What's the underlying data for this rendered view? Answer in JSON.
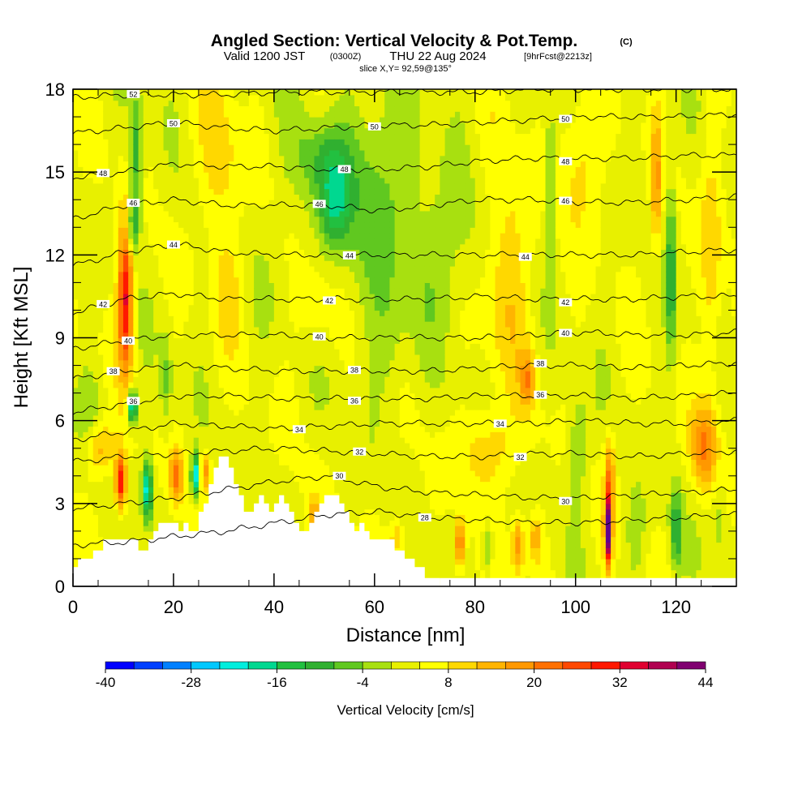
{
  "chart_data": {
    "type": "heatmap",
    "title": "Angled Section: Vertical Velocity & Pot.Temp.",
    "title_suffix": "(C)",
    "subtitle_valid": "Valid 1200 JST",
    "subtitle_utc": "(0300Z)",
    "subtitle_date": "THU 22 Aug 2024",
    "subtitle_fcst": "[9hrFcst@2213z]",
    "slice_label": "slice X,Y= 92,59@135°",
    "xlabel": "Distance [nm]",
    "ylabel": "Height [Kft MSL]",
    "xlim": [
      0,
      132
    ],
    "ylim": [
      0,
      18
    ],
    "x_ticks": [
      "0",
      "20",
      "40",
      "60",
      "80",
      "100",
      "120"
    ],
    "x_tick_values": [
      0,
      20,
      40,
      60,
      80,
      100,
      120
    ],
    "y_ticks": [
      "0",
      "3",
      "6",
      "9",
      "12",
      "15",
      "18"
    ],
    "y_tick_values": [
      0,
      3,
      6,
      9,
      12,
      15,
      18
    ],
    "colorbar": {
      "title": "Vertical Velocity [cm/s]",
      "levels": [
        -40,
        -36,
        -32,
        -28,
        -24,
        -20,
        -16,
        -12,
        -8,
        -4,
        0,
        4,
        8,
        12,
        16,
        20,
        24,
        28,
        32,
        36,
        40,
        44
      ],
      "labels": [
        "-40",
        "-28",
        "-16",
        "-4",
        "8",
        "20",
        "32",
        "44"
      ],
      "label_values": [
        -40,
        -28,
        -16,
        -4,
        8,
        20,
        32,
        44
      ],
      "colors": [
        "#0000ff",
        "#0040ff",
        "#0080ff",
        "#00c8ff",
        "#00eedd",
        "#00d890",
        "#22c040",
        "#30b030",
        "#60c820",
        "#a8e010",
        "#e8f000",
        "#ffff00",
        "#ffd800",
        "#ffb400",
        "#ff9800",
        "#ff7000",
        "#ff4800",
        "#ff1800",
        "#e00030",
        "#b00050",
        "#800070",
        "#600090"
      ]
    },
    "theta_contours": [
      {
        "value": 28,
        "label": "28",
        "heights": [
          1.5,
          1.6,
          1.8,
          2.0,
          2.3,
          2.6,
          2.7,
          2.5,
          2.4,
          2.3,
          2.3,
          2.4,
          2.5,
          2.6
        ]
      },
      {
        "value": 30,
        "label": "30",
        "heights": [
          2.8,
          3.0,
          3.2,
          3.5,
          3.8,
          4.0,
          3.6,
          3.4,
          3.3,
          3.2,
          3.2,
          3.3,
          3.4,
          3.5
        ]
      },
      {
        "value": 32,
        "label": "32",
        "heights": [
          4.5,
          4.7,
          4.8,
          4.9,
          5.0,
          4.9,
          4.8,
          4.7,
          4.7,
          4.8,
          4.8,
          4.7,
          4.8,
          4.9
        ]
      },
      {
        "value": 34,
        "label": "34",
        "heights": [
          5.3,
          5.6,
          5.9,
          5.8,
          5.7,
          5.8,
          5.9,
          5.9,
          5.9,
          5.9,
          6.0,
          5.9,
          5.9,
          6.0
        ]
      },
      {
        "value": 36,
        "label": "36",
        "heights": [
          6.3,
          6.6,
          6.9,
          6.9,
          6.8,
          6.8,
          6.8,
          6.8,
          6.9,
          6.9,
          6.9,
          6.8,
          6.9,
          7.0
        ]
      },
      {
        "value": 38,
        "label": "38",
        "heights": [
          7.5,
          7.8,
          8.0,
          7.9,
          7.8,
          7.8,
          7.8,
          7.8,
          7.9,
          8.0,
          8.0,
          7.9,
          8.0,
          8.1
        ]
      },
      {
        "value": 40,
        "label": "40",
        "heights": [
          8.6,
          8.9,
          9.1,
          9.1,
          9.1,
          9.0,
          9.0,
          9.0,
          9.0,
          9.1,
          9.2,
          9.1,
          9.1,
          9.2
        ]
      },
      {
        "value": 42,
        "label": "42",
        "heights": [
          9.9,
          10.4,
          10.6,
          10.4,
          10.4,
          10.4,
          10.4,
          10.4,
          10.5,
          10.4,
          10.4,
          10.4,
          10.5,
          10.5
        ]
      },
      {
        "value": 44,
        "label": "44",
        "heights": [
          11.6,
          12.1,
          12.4,
          12.1,
          12.0,
          12.0,
          12.0,
          12.0,
          12.0,
          12.0,
          12.0,
          12.0,
          12.1,
          12.2
        ]
      },
      {
        "value": 46,
        "label": "46",
        "heights": [
          13.3,
          13.8,
          14.0,
          13.8,
          13.8,
          13.8,
          13.6,
          13.8,
          14.0,
          14.0,
          13.9,
          13.9,
          14.0,
          14.1
        ]
      },
      {
        "value": 48,
        "label": "48",
        "heights": [
          14.8,
          15.0,
          15.3,
          15.2,
          15.2,
          15.1,
          15.1,
          15.2,
          15.4,
          15.5,
          15.5,
          15.5,
          15.6,
          15.6
        ]
      },
      {
        "value": 50,
        "label": "50",
        "heights": [
          16.4,
          16.6,
          16.8,
          16.6,
          16.5,
          16.6,
          16.7,
          16.7,
          16.8,
          16.9,
          17.0,
          17.0,
          17.0,
          17.1
        ]
      },
      {
        "value": 52,
        "label": "52",
        "heights": [
          17.7,
          17.8,
          17.8,
          17.8,
          17.9,
          17.9,
          17.9,
          17.9,
          17.9,
          18.0,
          18.0,
          18.0,
          18.0,
          18.0
        ]
      }
    ],
    "terrain": {
      "x": [
        0,
        1,
        2,
        3,
        4,
        5,
        6,
        8,
        9,
        10,
        11,
        12,
        13,
        14,
        15,
        16,
        17,
        18,
        19,
        20,
        21,
        22,
        23,
        24,
        25,
        26,
        27,
        28,
        29,
        30,
        31,
        32,
        33,
        34,
        35,
        36,
        37,
        38,
        39,
        40,
        41,
        42,
        43,
        44,
        45,
        46,
        47,
        48,
        49,
        50,
        51,
        52,
        53,
        54,
        55,
        56,
        57,
        58,
        59,
        60,
        61,
        62,
        63,
        64,
        65,
        66,
        67,
        68,
        69,
        70,
        71,
        72
      ],
      "heights": [
        0.7,
        1.0,
        1.0,
        1.0,
        1.3,
        1.3,
        1.7,
        1.7,
        1.7,
        1.7,
        1.7,
        1.7,
        1.3,
        1.3,
        1.7,
        2.0,
        2.3,
        2.3,
        2.3,
        2.3,
        2.0,
        2.3,
        2.0,
        2.0,
        2.7,
        3.0,
        3.7,
        4.3,
        4.7,
        4.7,
        4.3,
        3.7,
        3.3,
        2.7,
        2.7,
        3.0,
        3.3,
        3.0,
        2.7,
        3.0,
        3.3,
        3.0,
        2.7,
        2.3,
        2.0,
        2.0,
        2.3,
        2.7,
        3.0,
        3.3,
        3.3,
        3.3,
        3.0,
        2.7,
        2.3,
        2.0,
        2.3,
        2.0,
        1.7,
        1.7,
        1.7,
        1.7,
        1.7,
        1.3,
        1.3,
        1.0,
        1.0,
        0.7,
        0.7,
        0.3,
        0.3,
        0.3
      ]
    },
    "velocity_features": [
      {
        "x": 10.5,
        "y": 10.5,
        "sx": 1.5,
        "sy": 2.8,
        "v": 30
      },
      {
        "x": 9.5,
        "y": 3.8,
        "sx": 1.1,
        "sy": 1.0,
        "v": 30
      },
      {
        "x": 12.5,
        "y": 15.5,
        "sx": 1.3,
        "sy": 2.5,
        "v": -14
      },
      {
        "x": 11.8,
        "y": 13.0,
        "sx": 1.2,
        "sy": 1.0,
        "v": -14
      },
      {
        "x": 11.8,
        "y": 6.5,
        "sx": 1.0,
        "sy": 0.6,
        "v": -28
      },
      {
        "x": 14.8,
        "y": 3.5,
        "sx": 1.0,
        "sy": 1.1,
        "v": -26
      },
      {
        "x": 24.2,
        "y": 4.0,
        "sx": 0.6,
        "sy": 0.8,
        "v": -36
      },
      {
        "x": 20.5,
        "y": 4.0,
        "sx": 1.3,
        "sy": 1.0,
        "v": 18
      },
      {
        "x": 26.5,
        "y": 4.2,
        "sx": 0.8,
        "sy": 0.7,
        "v": 14
      },
      {
        "x": 18.5,
        "y": 7.5,
        "sx": 1.2,
        "sy": 1.8,
        "v": -8
      },
      {
        "x": 3.5,
        "y": 6.5,
        "sx": 3.0,
        "sy": 1.5,
        "v": -5
      },
      {
        "x": 5.5,
        "y": 5.0,
        "sx": 3.0,
        "sy": 1.0,
        "v": 12
      },
      {
        "x": 52.0,
        "y": 13.8,
        "sx": 3.0,
        "sy": 1.6,
        "v": -14
      },
      {
        "x": 50.0,
        "y": 15.5,
        "sx": 5.5,
        "sy": 1.5,
        "v": -8
      },
      {
        "x": 60.5,
        "y": 15.0,
        "sx": 6.5,
        "sy": 2.8,
        "v": -6
      },
      {
        "x": 75.0,
        "y": 12.0,
        "sx": 8.0,
        "sy": 2.5,
        "v": -5
      },
      {
        "x": 63.0,
        "y": 8.5,
        "sx": 4.0,
        "sy": 2.5,
        "v": -4
      },
      {
        "x": 29.0,
        "y": 15.5,
        "sx": 4.0,
        "sy": 3.0,
        "v": 8
      },
      {
        "x": 31.0,
        "y": 11.0,
        "sx": 3.0,
        "sy": 2.0,
        "v": 6
      },
      {
        "x": 48.0,
        "y": 10.0,
        "sx": 4.0,
        "sy": 2.0,
        "v": 6
      },
      {
        "x": 86.0,
        "y": 11.5,
        "sx": 5.0,
        "sy": 4.0,
        "v": 9
      },
      {
        "x": 90.5,
        "y": 7.5,
        "sx": 1.5,
        "sy": 1.0,
        "v": 14
      },
      {
        "x": 83.0,
        "y": 5.0,
        "sx": 6.0,
        "sy": 1.5,
        "v": 8
      },
      {
        "x": 95.0,
        "y": 14.5,
        "sx": 1.1,
        "sy": 2.5,
        "v": -12
      },
      {
        "x": 106.5,
        "y": 2.0,
        "sx": 0.7,
        "sy": 1.2,
        "v": 42
      },
      {
        "x": 106.8,
        "y": 4.0,
        "sx": 1.0,
        "sy": 1.5,
        "v": 16
      },
      {
        "x": 119.0,
        "y": 11.5,
        "sx": 0.9,
        "sy": 3.5,
        "v": -14
      },
      {
        "x": 116.0,
        "y": 14.5,
        "sx": 1.0,
        "sy": 2.5,
        "v": 14
      },
      {
        "x": 120.0,
        "y": 2.0,
        "sx": 1.2,
        "sy": 1.5,
        "v": -14
      },
      {
        "x": 125.5,
        "y": 5.0,
        "sx": 2.5,
        "sy": 1.5,
        "v": 16
      },
      {
        "x": 77.0,
        "y": 1.5,
        "sx": 1.0,
        "sy": 1.0,
        "v": 20
      },
      {
        "x": 88.5,
        "y": 1.5,
        "sx": 1.2,
        "sy": 1.0,
        "v": 16
      },
      {
        "x": 92.0,
        "y": 1.8,
        "sx": 1.5,
        "sy": 0.9,
        "v": 12
      },
      {
        "x": 82.5,
        "y": 1.5,
        "sx": 1.0,
        "sy": 1.0,
        "v": -10
      },
      {
        "x": 112.0,
        "y": 2.0,
        "sx": 2.0,
        "sy": 1.5,
        "v": -6
      },
      {
        "x": 100.5,
        "y": 5.0,
        "sx": 2.0,
        "sy": 2.0,
        "v": -8
      },
      {
        "x": 128.5,
        "y": 2.5,
        "sx": 1.5,
        "sy": 1.5,
        "v": -6
      },
      {
        "x": 48.0,
        "y": 2.6,
        "sx": 1.2,
        "sy": 0.6,
        "v": 12
      },
      {
        "x": 64.5,
        "y": 1.8,
        "sx": 1.5,
        "sy": 0.8,
        "v": 10
      },
      {
        "x": 127.0,
        "y": 11.5,
        "sx": 2.0,
        "sy": 5.0,
        "v": 8
      },
      {
        "x": 101.0,
        "y": 15.5,
        "sx": 4.0,
        "sy": 2.5,
        "v": 8
      }
    ]
  }
}
